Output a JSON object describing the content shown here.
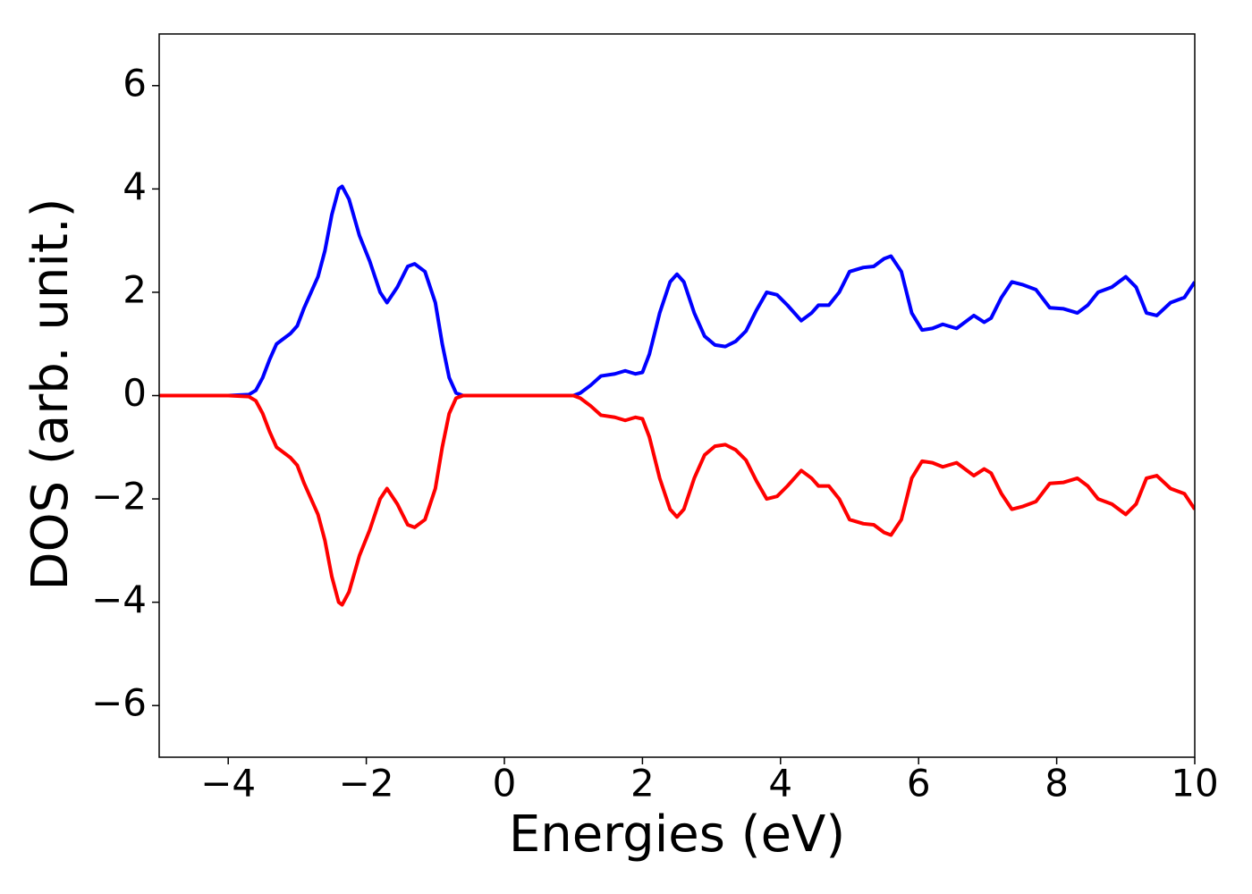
{
  "chart_data": {
    "type": "line",
    "x_label": "Energies (eV)",
    "y_label": "DOS (arb. unit.)",
    "xlim": [
      -5,
      10
    ],
    "ylim": [
      -7,
      7
    ],
    "xticks": [
      {
        "value": -4,
        "label": "−4"
      },
      {
        "value": -2,
        "label": "−2"
      },
      0,
      2,
      4,
      6,
      8,
      10
    ],
    "yticks": [
      {
        "value": -6,
        "label": "−6"
      },
      {
        "value": -4,
        "label": "−4"
      },
      {
        "value": -2,
        "label": "−2"
      },
      0,
      2,
      4,
      6
    ],
    "grid": false,
    "x": [
      -5,
      -4,
      -3.7,
      -3.6,
      -3.5,
      -3.4,
      -3.3,
      -3.1,
      -3.0,
      -2.9,
      -2.8,
      -2.7,
      -2.6,
      -2.5,
      -2.4,
      -2.35,
      -2.25,
      -2.1,
      -1.95,
      -1.8,
      -1.7,
      -1.55,
      -1.4,
      -1.3,
      -1.15,
      -1.0,
      -0.9,
      -0.8,
      -0.7,
      -0.6,
      1.0,
      1.1,
      1.25,
      1.4,
      1.6,
      1.75,
      1.9,
      2.0,
      2.1,
      2.25,
      2.4,
      2.5,
      2.6,
      2.75,
      2.9,
      3.05,
      3.2,
      3.35,
      3.5,
      3.65,
      3.8,
      3.95,
      4.1,
      4.3,
      4.45,
      4.55,
      4.7,
      4.85,
      5.0,
      5.2,
      5.35,
      5.5,
      5.6,
      5.75,
      5.9,
      6.05,
      6.2,
      6.35,
      6.55,
      6.65,
      6.8,
      6.95,
      7.05,
      7.2,
      7.35,
      7.5,
      7.7,
      7.9,
      8.1,
      8.3,
      8.45,
      8.6,
      8.8,
      9.0,
      9.15,
      9.3,
      9.45,
      9.65,
      9.85,
      10
    ],
    "series": [
      {
        "color": "#0000ff",
        "values": [
          0,
          0,
          0.02,
          0.1,
          0.35,
          0.7,
          1.0,
          1.2,
          1.35,
          1.7,
          2.0,
          2.3,
          2.8,
          3.5,
          4.0,
          4.05,
          3.8,
          3.1,
          2.6,
          2.0,
          1.8,
          2.1,
          2.5,
          2.55,
          2.4,
          1.8,
          1.0,
          0.35,
          0.05,
          0,
          0,
          0.05,
          0.2,
          0.38,
          0.42,
          0.48,
          0.42,
          0.45,
          0.8,
          1.6,
          2.2,
          2.35,
          2.2,
          1.6,
          1.15,
          0.98,
          0.95,
          1.05,
          1.25,
          1.65,
          2.0,
          1.95,
          1.75,
          1.45,
          1.6,
          1.75,
          1.75,
          2.0,
          2.4,
          2.48,
          2.5,
          2.65,
          2.7,
          2.4,
          1.6,
          1.27,
          1.3,
          1.38,
          1.3,
          1.4,
          1.55,
          1.42,
          1.5,
          1.9,
          2.2,
          2.15,
          2.05,
          1.7,
          1.68,
          1.6,
          1.75,
          2.0,
          2.1,
          2.3,
          2.1,
          1.6,
          1.55,
          1.8,
          1.9,
          2.2
        ]
      },
      {
        "color": "#ff0000",
        "values": [
          0,
          0,
          -0.02,
          -0.1,
          -0.35,
          -0.7,
          -1.0,
          -1.2,
          -1.35,
          -1.7,
          -2.0,
          -2.3,
          -2.8,
          -3.5,
          -4.0,
          -4.05,
          -3.8,
          -3.1,
          -2.6,
          -2.0,
          -1.8,
          -2.1,
          -2.5,
          -2.55,
          -2.4,
          -1.8,
          -1.0,
          -0.35,
          -0.05,
          0,
          0,
          -0.05,
          -0.2,
          -0.38,
          -0.42,
          -0.48,
          -0.42,
          -0.45,
          -0.8,
          -1.6,
          -2.2,
          -2.35,
          -2.2,
          -1.6,
          -1.15,
          -0.98,
          -0.95,
          -1.05,
          -1.25,
          -1.65,
          -2.0,
          -1.95,
          -1.75,
          -1.45,
          -1.6,
          -1.75,
          -1.75,
          -2.0,
          -2.4,
          -2.48,
          -2.5,
          -2.65,
          -2.7,
          -2.4,
          -1.6,
          -1.27,
          -1.3,
          -1.38,
          -1.3,
          -1.4,
          -1.55,
          -1.42,
          -1.5,
          -1.9,
          -2.2,
          -2.15,
          -2.05,
          -1.7,
          -1.68,
          -1.6,
          -1.75,
          -2.0,
          -2.1,
          -2.3,
          -2.1,
          -1.6,
          -1.55,
          -1.8,
          -1.9,
          -2.2
        ]
      }
    ]
  }
}
